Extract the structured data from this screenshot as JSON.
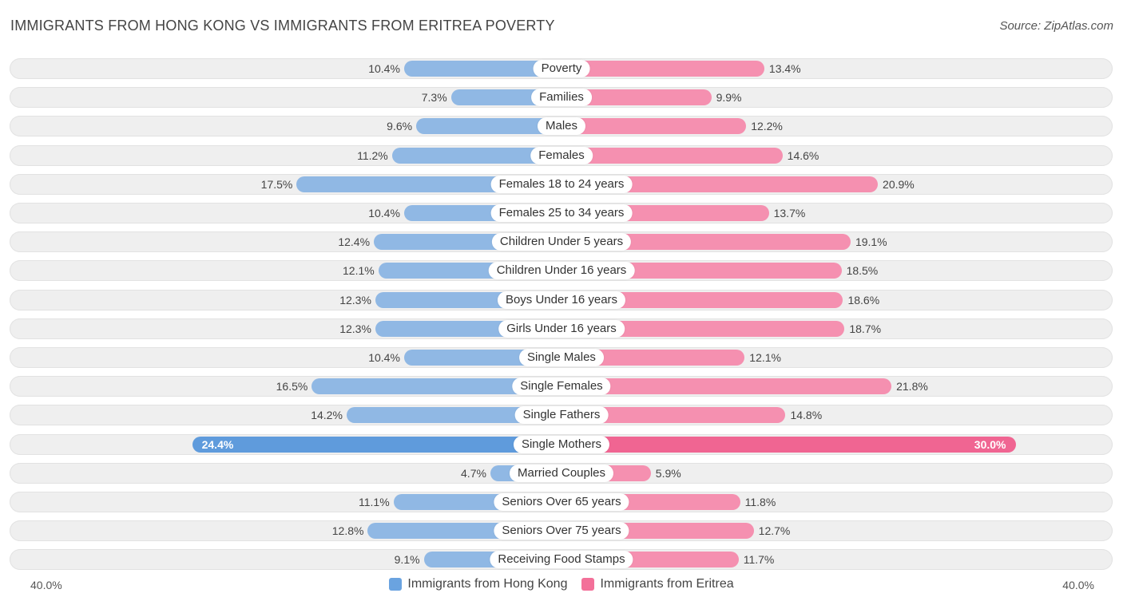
{
  "title": "IMMIGRANTS FROM HONG KONG VS IMMIGRANTS FROM ERITREA POVERTY",
  "source": "Source: ZipAtlas.com",
  "colors": {
    "hong_kong": "#90b8e4",
    "eritrea": "#f590b0",
    "hong_kong_highlight": "#5f9bdc",
    "eritrea_highlight": "#f06592"
  },
  "axis": {
    "left_label": "40.0%",
    "right_label": "40.0%"
  },
  "legend": {
    "hong_kong": "Immigrants from Hong Kong",
    "eritrea": "Immigrants from Eritrea"
  },
  "chart_data": {
    "type": "bar",
    "orientation": "horizontal-diverging",
    "title": "IMMIGRANTS FROM HONG KONG VS IMMIGRANTS FROM ERITREA POVERTY",
    "xlim": [
      0,
      40
    ],
    "categories": [
      "Poverty",
      "Families",
      "Males",
      "Females",
      "Females 18 to 24 years",
      "Females 25 to 34 years",
      "Children Under 5 years",
      "Children Under 16 years",
      "Boys Under 16 years",
      "Girls Under 16 years",
      "Single Males",
      "Single Females",
      "Single Fathers",
      "Single Mothers",
      "Married Couples",
      "Seniors Over 65 years",
      "Seniors Over 75 years",
      "Receiving Food Stamps"
    ],
    "series": [
      {
        "name": "Immigrants from Hong Kong",
        "values": [
          10.4,
          7.3,
          9.6,
          11.2,
          17.5,
          10.4,
          12.4,
          12.1,
          12.3,
          12.3,
          10.4,
          16.5,
          14.2,
          24.4,
          4.7,
          11.1,
          12.8,
          9.1
        ],
        "labels": [
          "10.4%",
          "7.3%",
          "9.6%",
          "11.2%",
          "17.5%",
          "10.4%",
          "12.4%",
          "12.1%",
          "12.3%",
          "12.3%",
          "10.4%",
          "16.5%",
          "14.2%",
          "24.4%",
          "4.7%",
          "11.1%",
          "12.8%",
          "9.1%"
        ]
      },
      {
        "name": "Immigrants from Eritrea",
        "values": [
          13.4,
          9.9,
          12.2,
          14.6,
          20.9,
          13.7,
          19.1,
          18.5,
          18.6,
          18.7,
          12.1,
          21.8,
          14.8,
          30.0,
          5.9,
          11.8,
          12.7,
          11.7
        ],
        "labels": [
          "13.4%",
          "9.9%",
          "12.2%",
          "14.6%",
          "20.9%",
          "13.7%",
          "19.1%",
          "18.5%",
          "18.6%",
          "18.7%",
          "12.1%",
          "21.8%",
          "14.8%",
          "30.0%",
          "5.9%",
          "11.8%",
          "12.7%",
          "11.7%"
        ]
      }
    ],
    "highlighted_category": "Single Mothers"
  }
}
